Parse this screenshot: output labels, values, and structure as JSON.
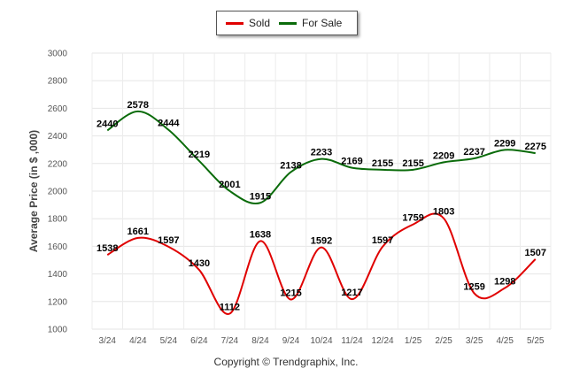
{
  "chart_data": {
    "type": "line",
    "categories": [
      "3/24",
      "4/24",
      "5/24",
      "6/24",
      "7/24",
      "8/24",
      "9/24",
      "10/24",
      "11/24",
      "12/24",
      "1/25",
      "2/25",
      "3/25",
      "4/25",
      "5/25"
    ],
    "series": [
      {
        "name": "Sold",
        "color": "#e00000",
        "values": [
          1538,
          1661,
          1597,
          1430,
          1112,
          1638,
          1215,
          1592,
          1217,
          1597,
          1759,
          1803,
          1259,
          1298,
          1507
        ]
      },
      {
        "name": "For Sale",
        "color": "#0a6b0a",
        "values": [
          2440,
          2578,
          2444,
          2219,
          2001,
          1915,
          2138,
          2233,
          2169,
          2155,
          2155,
          2209,
          2237,
          2299,
          2275
        ]
      }
    ],
    "ylabel": "Average Price (in $ ,000)",
    "xlabel": "",
    "ylim": [
      1000,
      3000
    ],
    "yticks": [
      1000,
      1200,
      1400,
      1600,
      1800,
      2000,
      2200,
      2400,
      2600,
      2800,
      3000
    ],
    "grid": true,
    "legend_position": "top-center"
  },
  "legend": {
    "sold_label": "Sold",
    "for_sale_label": "For Sale"
  },
  "footer": {
    "copyright": "Copyright © Trendgraphix, Inc."
  }
}
